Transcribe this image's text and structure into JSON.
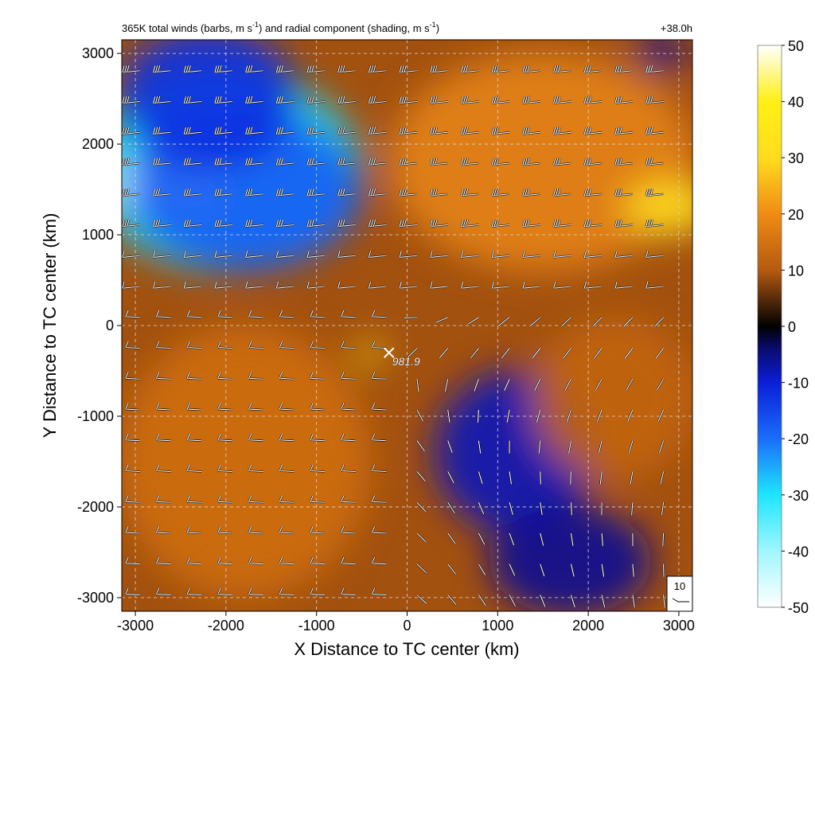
{
  "chart_data": {
    "type": "heatmap",
    "title": "365K total winds (barbs, m s",
    "title_unit_exp": "-1",
    "title_mid": ") and radial component (shading, m s",
    "title_unit_exp2": "-1",
    "title_end": ")",
    "forecast_time": "+38.0h",
    "xlabel": "X Distance to TC center (km)",
    "ylabel": "Y Distance to TC center (km)",
    "xlim": [
      -3150,
      3150
    ],
    "ylim": [
      -3150,
      3150
    ],
    "grid": true,
    "xticks": [
      -3000,
      -2000,
      -1000,
      0,
      1000,
      2000,
      3000
    ],
    "yticks": [
      -3000,
      -2000,
      -1000,
      0,
      1000,
      2000,
      3000
    ],
    "xtick_labels": [
      "-3000",
      "-2000",
      "-1000",
      "0",
      "1000",
      "2000",
      "3000"
    ],
    "ytick_labels": [
      "-3000",
      "-2000",
      "-1000",
      "0",
      "1000",
      "2000",
      "3000"
    ],
    "colorbar": {
      "min": -50,
      "max": 50,
      "ticks": [
        50,
        40,
        30,
        20,
        10,
        0,
        -10,
        -20,
        -30,
        -40,
        -50
      ],
      "tick_labels": [
        "50",
        "40",
        "30",
        "20",
        "10",
        "0",
        "-10",
        "-20",
        "-30",
        "-40",
        "-50"
      ],
      "colors": [
        {
          "value": -50,
          "color": "#ffffff"
        },
        {
          "value": -40,
          "color": "#a0f6ff"
        },
        {
          "value": -30,
          "color": "#1ee6ff"
        },
        {
          "value": -20,
          "color": "#1a6dfa"
        },
        {
          "value": -10,
          "color": "#0a1fd8"
        },
        {
          "value": -4,
          "color": "#0a0a6e"
        },
        {
          "value": 0,
          "color": "#000000"
        },
        {
          "value": 5,
          "color": "#5a2c0a"
        },
        {
          "value": 10,
          "color": "#b55a10"
        },
        {
          "value": 20,
          "color": "#f08c14"
        },
        {
          "value": 30,
          "color": "#ffdc1e"
        },
        {
          "value": 40,
          "color": "#fff014"
        },
        {
          "value": 50,
          "color": "#ffffff"
        }
      ]
    },
    "center_marker": {
      "x": -200,
      "y": -300,
      "label": "981.9"
    },
    "reference_barb": {
      "label": "10"
    },
    "barb_spacing_km": 340,
    "shading_regions": [
      {
        "cx": -2000,
        "cy": 1700,
        "rx": 1500,
        "ry": 1100,
        "value": -30
      },
      {
        "cx": -2600,
        "cy": 1550,
        "rx": 700,
        "ry": 280,
        "value": -48
      },
      {
        "cx": -1800,
        "cy": 1500,
        "rx": 1300,
        "ry": 900,
        "value": -18
      },
      {
        "cx": -2200,
        "cy": 2500,
        "rx": 1000,
        "ry": 800,
        "value": -12
      },
      {
        "cx": 1200,
        "cy": -1400,
        "rx": 900,
        "ry": 900,
        "value": -8
      },
      {
        "cx": 1800,
        "cy": -2600,
        "rx": 900,
        "ry": 600,
        "value": -6
      },
      {
        "cx": 1500,
        "cy": 1800,
        "rx": 1700,
        "ry": 1200,
        "value": 18
      },
      {
        "cx": 2900,
        "cy": 1300,
        "rx": 500,
        "ry": 300,
        "value": 30
      },
      {
        "cx": -1800,
        "cy": -1500,
        "rx": 1400,
        "ry": 1500,
        "value": 14
      },
      {
        "cx": -400,
        "cy": -300,
        "rx": 150,
        "ry": 120,
        "value": 35
      },
      {
        "cx": 2300,
        "cy": -800,
        "rx": 900,
        "ry": 900,
        "value": 12
      },
      {
        "cx": 2800,
        "cy": 3000,
        "rx": 300,
        "ry": 200,
        "value": -6
      }
    ]
  }
}
